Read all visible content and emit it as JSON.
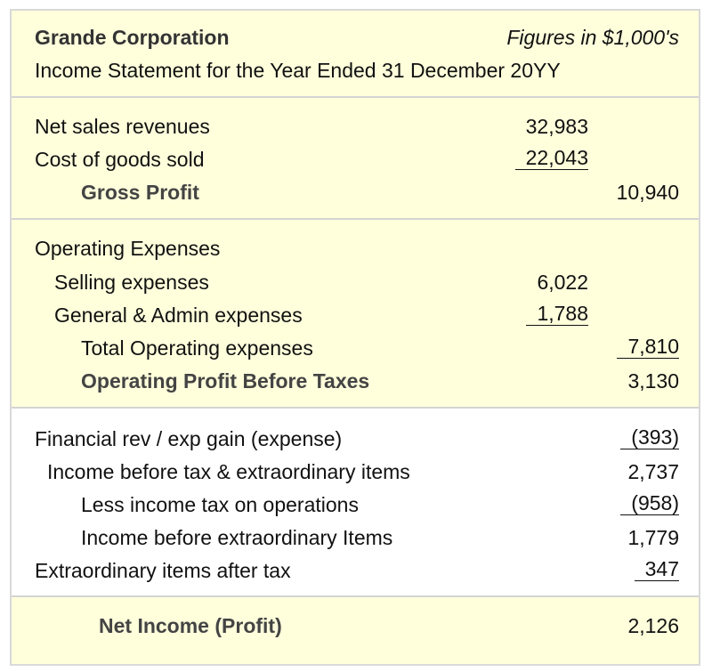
{
  "header": {
    "company": "Grande Corporation",
    "figures_note": "Figures in $1,000's",
    "subtitle": "Income Statement for the Year Ended 31 December 20YY"
  },
  "revenue": {
    "net_sales_label": "Net sales revenues",
    "net_sales_value": "32,983",
    "cogs_label": "Cost of goods sold",
    "cogs_value": "22,043",
    "gross_profit_label": "Gross Profit",
    "gross_profit_value": "10,940"
  },
  "operating": {
    "heading": "Operating Expenses",
    "selling_label": "Selling expenses",
    "selling_value": "6,022",
    "ga_label": "General & Admin expenses",
    "ga_value": "1,788",
    "total_label": "Total Operating expenses",
    "total_value": "7,810",
    "profit_label": "Operating Profit Before Taxes",
    "profit_value": "3,130"
  },
  "other": {
    "financial_label": "Financial rev / exp gain (expense)",
    "financial_value": "(393)",
    "income_before_tax_label": "Income before tax & extraordinary items",
    "income_before_tax_value": "2,737",
    "tax_label": "Less income tax on operations",
    "tax_value": "(958)",
    "income_before_extra_label": "Income before extraordinary Items",
    "income_before_extra_value": "1,779",
    "extraordinary_label": "Extraordinary items after tax",
    "extraordinary_value": "347"
  },
  "net_income": {
    "label": "Net Income (Profit)",
    "value": "2,126"
  }
}
